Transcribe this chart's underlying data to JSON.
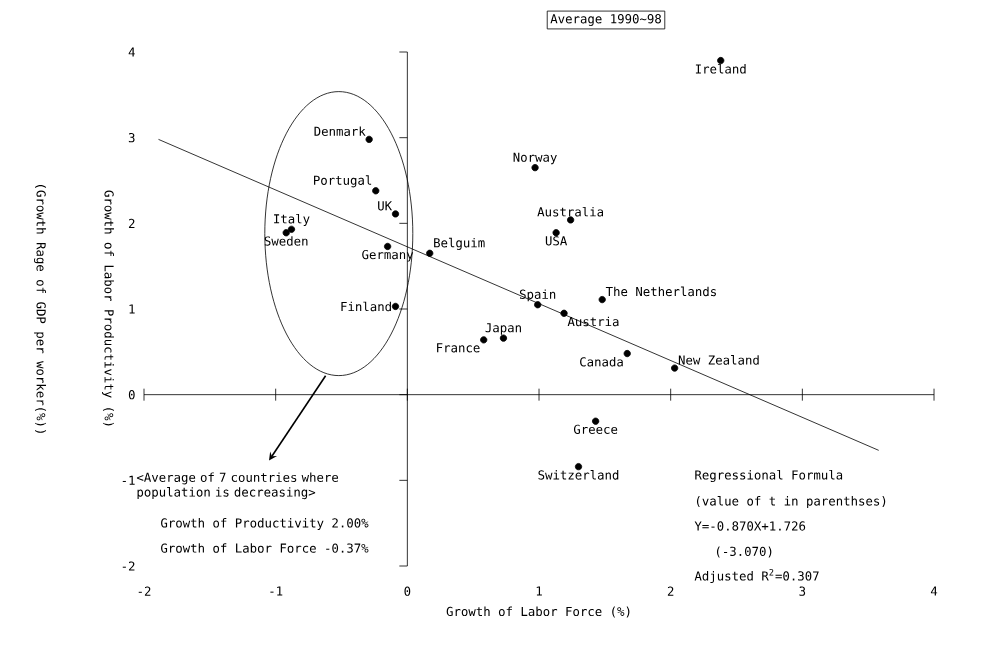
{
  "chart_data": {
    "type": "scatter",
    "title": "Average 1990~98",
    "xlabel": "Growth of Labor Force   (%)",
    "ylabel": "Growth of Labor Productivity (%)",
    "annotations": [
      "(Growth Rage of GDP per worker(%))",
      "<Average of 7 countries where population is decreasing>",
      "Growth of Productivity  2.00%",
      "Growth of Labor Force  -0.37%",
      "Regressional Formula",
      "(value of t in parenthses)",
      "Y=-0.870X+1.726",
      "(-3.070)",
      "Adjusted R$^{2}$=0.307"
    ],
    "xlim": [
      -2,
      4
    ],
    "ylim": [
      -2,
      4
    ],
    "xticks": [
      -2,
      -1,
      0,
      1,
      2,
      3,
      4
    ],
    "yticks": [
      -2,
      -1,
      0,
      1,
      2,
      3,
      4
    ],
    "series": [
      {
        "marker": "circle",
        "color": "#000000",
        "x": [
          2.38,
          0.97,
          1.24,
          1.13,
          1.48,
          0.99,
          1.19,
          1.67,
          2.03,
          1.43,
          1.3,
          0.73,
          0.58,
          -0.09,
          -0.29,
          -0.24,
          -0.09,
          -0.88,
          -0.92,
          -0.15,
          0.17
        ],
        "values": [
          3.9,
          2.65,
          2.04,
          1.89,
          1.11,
          1.05,
          0.95,
          0.48,
          0.31,
          -0.31,
          -0.84,
          0.66,
          0.64,
          1.03,
          2.98,
          2.38,
          2.11,
          1.93,
          1.89,
          1.73,
          1.65
        ],
        "value_labels": [
          "Ireland",
          "Norway",
          "Australia",
          "USA",
          "The Netherlands",
          "Spain",
          "Austria",
          "Canada",
          "New Zealand",
          "Greece",
          "Switzerland",
          "Japan",
          "France",
          "Finland",
          "Denmark",
          "Portugal",
          "UK",
          "Italy",
          "Sweden",
          "Germany",
          "Belguim"
        ]
      },
      {
        "type": "line",
        "marker": "none",
        "color": "#000000",
        "x": [
          -1.89,
          3.58
        ],
        "values": [
          2.98,
          -0.65
        ]
      }
    ]
  }
}
